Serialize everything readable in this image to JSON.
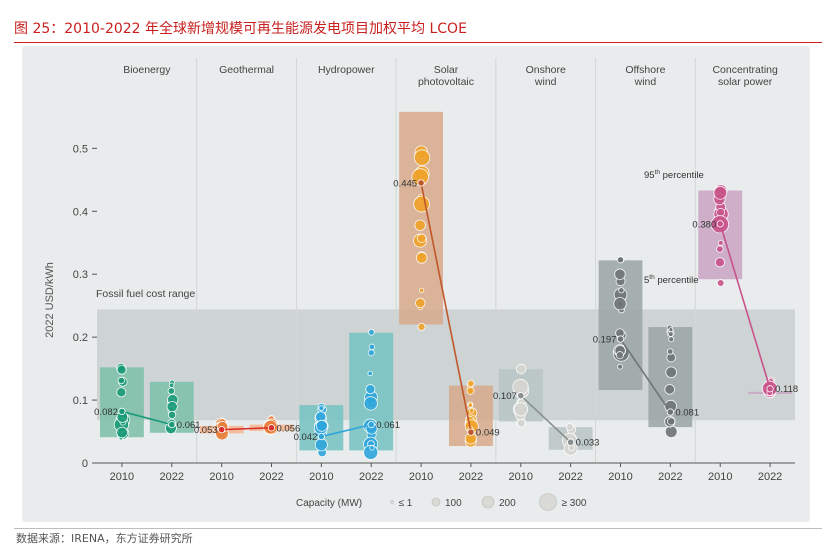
{
  "figure": {
    "title": "图 25：2010-2022 年全球新增规模可再生能源发电项目加权平均 LCOE",
    "source": "数据来源：IRENA，东方证券研究所"
  },
  "chart_data": {
    "type": "scatter",
    "title": "",
    "ylabel": "2022 USD/kWh",
    "ylim": [
      0,
      0.58
    ],
    "yticks": [
      "0",
      "0.1",
      "0.2",
      "0.3",
      "0.4",
      "0.5"
    ],
    "ytick_values": [
      0,
      0.1,
      0.2,
      0.3,
      0.4,
      0.5
    ],
    "fossil_range": {
      "label": "Fossil fuel cost range",
      "low": 0.068,
      "high": 0.244
    },
    "annotations": {
      "p95": "95",
      "p95_suffix": "th percentile",
      "p5": "5",
      "p5_suffix": "th percentile"
    },
    "legend": {
      "title": "Capacity (MW)",
      "items": [
        "≤ 1",
        "100",
        "200",
        "≥ 300"
      ]
    },
    "technologies": [
      {
        "name": "Bioenergy",
        "name_lines": [
          "Bioenergy"
        ],
        "color": "#1a9a78",
        "box": "#7bbfa8",
        "years": [
          "2010",
          "2022"
        ],
        "averages": [
          0.082,
          0.061
        ],
        "labels": [
          "0.082",
          "0.061"
        ],
        "p5": [
          0.041,
          0.048
        ],
        "p95": [
          0.152,
          0.129
        ]
      },
      {
        "name": "Geothermal",
        "name_lines": [
          "Geothermal"
        ],
        "color": "#e87e3a",
        "box": "#f4b591",
        "years": [
          "2010",
          "2022"
        ],
        "averages": [
          0.053,
          0.056
        ],
        "labels": [
          "0.053",
          "0.056"
        ],
        "p5": [
          0.047,
          0.051
        ],
        "p95": [
          0.059,
          0.061
        ]
      },
      {
        "name": "Hydropower",
        "name_lines": [
          "Hydropower"
        ],
        "color": "#2ea6dc",
        "box": "#74c2c2",
        "years": [
          "2010",
          "2022"
        ],
        "averages": [
          0.042,
          0.061
        ],
        "labels": [
          "0.042",
          "0.061"
        ],
        "p5": [
          0.02,
          0.02
        ],
        "p95": [
          0.092,
          0.207
        ]
      },
      {
        "name": "Solar photovoltaic",
        "name_lines": [
          "Solar",
          "photovoltaic"
        ],
        "color": "#f0a32a",
        "box": "#d7a98b",
        "years": [
          "2010",
          "2022"
        ],
        "averages": [
          0.445,
          0.049
        ],
        "labels": [
          "0.445",
          "0.049"
        ],
        "p5": [
          0.22,
          0.027
        ],
        "p95": [
          0.558,
          0.123
        ]
      },
      {
        "name": "Onshore wind",
        "name_lines": [
          "Onshore",
          "wind"
        ],
        "color": "#d4d4d0",
        "box": "#b9c4c4",
        "years": [
          "2010",
          "2022"
        ],
        "averages": [
          0.107,
          0.033
        ],
        "labels": [
          "0.107",
          "0.033"
        ],
        "p5": [
          0.066,
          0.021
        ],
        "p95": [
          0.149,
          0.057
        ]
      },
      {
        "name": "Offshore wind",
        "name_lines": [
          "Offshore",
          "wind"
        ],
        "color": "#6e7577",
        "box": "#9aa4a6",
        "years": [
          "2010",
          "2022"
        ],
        "averages": [
          0.197,
          0.081
        ],
        "labels": [
          "0.197",
          "0.081"
        ],
        "p5": [
          0.116,
          0.057
        ],
        "p95": [
          0.322,
          0.216
        ]
      },
      {
        "name": "Concentrating solar power",
        "name_lines": [
          "Concentrating",
          "solar power"
        ],
        "color": "#c8538a",
        "box": "#c9a3c3",
        "years": [
          "2010",
          "2022"
        ],
        "averages": [
          0.38,
          0.118
        ],
        "labels": [
          "0.380",
          "0.118"
        ],
        "p5": [
          0.292,
          0.111
        ],
        "p95": [
          0.433,
          0.113
        ]
      }
    ]
  }
}
